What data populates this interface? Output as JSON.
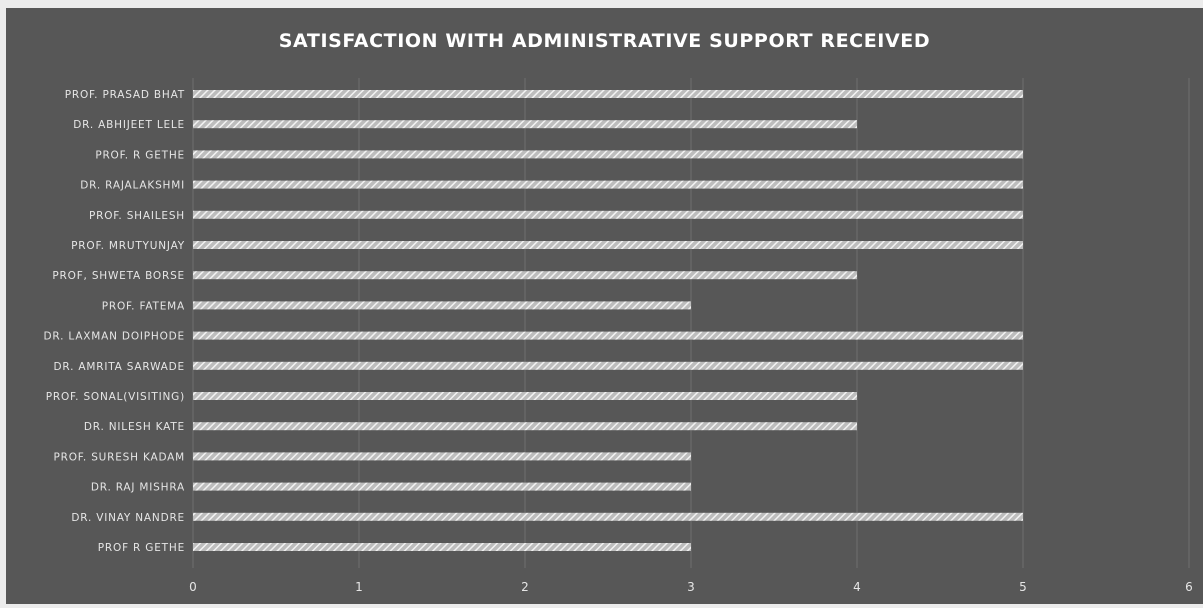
{
  "colors": {
    "background": "#575757",
    "bar_pattern": "hatched-light-gray",
    "text": "#e6e6e6",
    "gridline": "#6f6f6f"
  },
  "chart_data": {
    "type": "bar",
    "orientation": "horizontal",
    "title": "SATISFACTION WITH ADMINISTRATIVE SUPPORT RECEIVED",
    "xlabel": "",
    "ylabel": "",
    "xlim": [
      0,
      6
    ],
    "x_ticks": [
      "0",
      "1",
      "2",
      "3",
      "4",
      "5",
      "6"
    ],
    "grid": "vertical",
    "legend": "none",
    "categories": [
      "PROF. PRASAD BHAT",
      "DR. ABHIJEET LELE",
      "PROF. R GETHE",
      "DR. RAJALAKSHMI",
      "PROF. SHAILESH",
      "PROF. MRUTYUNJAY",
      "PROF, SHWETA BORSE",
      "PROF. FATEMA",
      "DR. LAXMAN DOIPHODE",
      "DR. AMRITA SARWADE",
      "PROF. SONAL(VISITING)",
      "DR. NILESH KATE",
      "PROF. SURESH KADAM",
      "DR. RAJ MISHRA",
      "DR. VINAY NANDRE",
      "PROF R GETHE"
    ],
    "values": [
      5,
      4,
      5,
      5,
      5,
      5,
      4,
      3,
      5,
      5,
      4,
      4,
      3,
      3,
      5,
      3
    ]
  }
}
